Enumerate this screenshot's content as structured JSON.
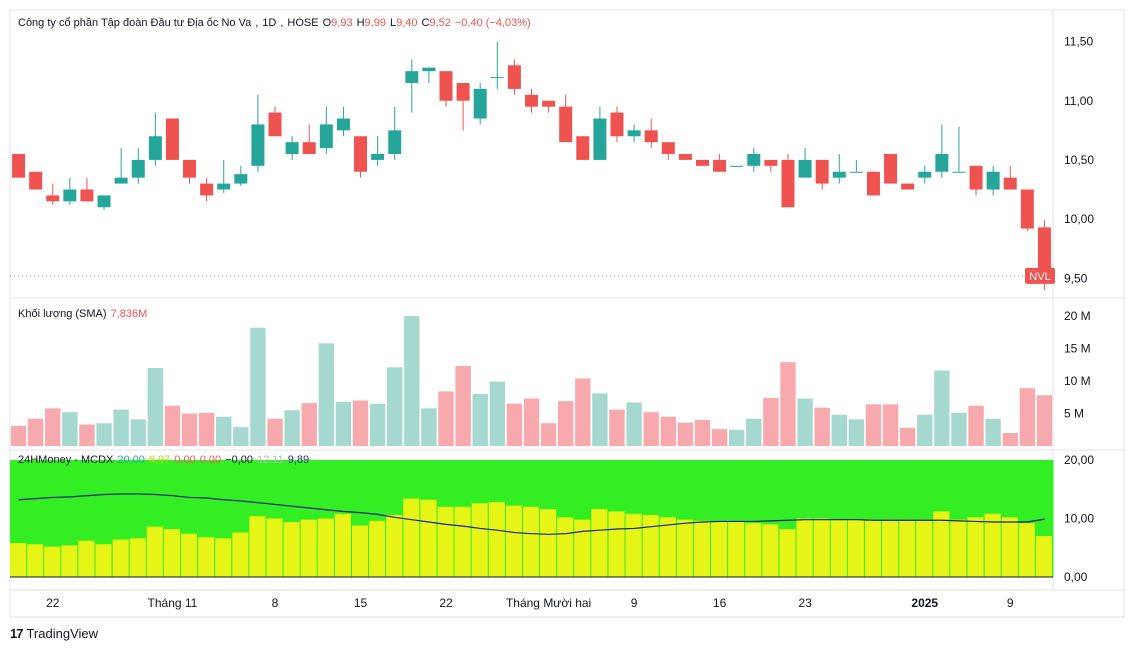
{
  "header": {
    "name": "Công ty cổ phần Tập đoàn Đầu tư Địa ốc No Va",
    "interval": "1D",
    "exchange": "HOSE",
    "o_label": "O",
    "o_val": "9,93",
    "h_label": "H",
    "h_val": "9,99",
    "l_label": "L",
    "l_val": "9,40",
    "c_label": "C",
    "c_val": "9,52",
    "change": "−0,40 (−4,03%)"
  },
  "volume_legend": {
    "title": "Khối lượng (SMA)",
    "value": "7,836M"
  },
  "mcdx_legend": {
    "title": "24HMoney - MCDX",
    "v1": "20,00",
    "v2": "6,97",
    "v3": "0,00",
    "v4": "0,00",
    "v5": "−0,00",
    "v6": "12,11",
    "v7": "9,89"
  },
  "price_badge": "NVL",
  "brand": "TradingView",
  "colors": {
    "up": "#26a69a",
    "down": "#ef5350",
    "vol_up": "#a5d8cf",
    "vol_down": "#f7a9ae",
    "green": "#33ee22",
    "yellow": "#e6f516",
    "line": "#1a237e"
  },
  "chart_data": [
    {
      "type": "candlestick",
      "price_axis": [
        "11,50",
        "11,00",
        "10,50",
        "10,00",
        "9,50"
      ],
      "ylim": [
        9.35,
        11.75
      ],
      "last_price": 9.52,
      "x_ticks": [
        {
          "label": "22",
          "index": 2
        },
        {
          "label": "Tháng 11",
          "index": 9
        },
        {
          "label": "8",
          "index": 15
        },
        {
          "label": "15",
          "index": 20
        },
        {
          "label": "22",
          "index": 25
        },
        {
          "label": "Tháng Mười hai",
          "index": 31
        },
        {
          "label": "9",
          "index": 36
        },
        {
          "label": "16",
          "index": 41
        },
        {
          "label": "23",
          "index": 46
        },
        {
          "label": "2025",
          "index": 53
        },
        {
          "label": "9",
          "index": 58
        }
      ],
      "ohlc": [
        [
          10.55,
          10.55,
          10.35,
          10.35
        ],
        [
          10.4,
          10.4,
          10.25,
          10.25
        ],
        [
          10.2,
          10.3,
          10.12,
          10.15
        ],
        [
          10.15,
          10.35,
          10.12,
          10.25
        ],
        [
          10.25,
          10.35,
          10.15,
          10.15
        ],
        [
          10.1,
          10.2,
          10.08,
          10.2
        ],
        [
          10.3,
          10.6,
          10.3,
          10.35
        ],
        [
          10.35,
          10.6,
          10.3,
          10.5
        ],
        [
          10.5,
          10.9,
          10.45,
          10.7
        ],
        [
          10.85,
          10.85,
          10.5,
          10.5
        ],
        [
          10.5,
          10.5,
          10.3,
          10.35
        ],
        [
          10.3,
          10.35,
          10.15,
          10.2
        ],
        [
          10.25,
          10.5,
          10.22,
          10.3
        ],
        [
          10.3,
          10.45,
          10.28,
          10.38
        ],
        [
          10.45,
          11.05,
          10.4,
          10.8
        ],
        [
          10.9,
          10.95,
          10.7,
          10.7
        ],
        [
          10.55,
          10.7,
          10.5,
          10.65
        ],
        [
          10.65,
          10.8,
          10.55,
          10.55
        ],
        [
          10.6,
          10.95,
          10.55,
          10.8
        ],
        [
          10.75,
          10.95,
          10.7,
          10.85
        ],
        [
          10.7,
          10.7,
          10.35,
          10.4
        ],
        [
          10.5,
          10.7,
          10.45,
          10.55
        ],
        [
          10.55,
          10.95,
          10.5,
          10.75
        ],
        [
          11.15,
          11.35,
          10.9,
          11.25
        ],
        [
          11.25,
          11.28,
          11.15,
          11.28
        ],
        [
          11.25,
          11.25,
          10.95,
          11.0
        ],
        [
          11.15,
          11.15,
          10.75,
          11.0
        ],
        [
          10.85,
          11.15,
          10.8,
          11.1
        ],
        [
          11.2,
          11.5,
          11.1,
          11.2
        ],
        [
          11.3,
          11.35,
          11.05,
          11.1
        ],
        [
          11.05,
          11.1,
          10.9,
          10.95
        ],
        [
          11.0,
          11.0,
          10.9,
          10.95
        ],
        [
          10.95,
          11.05,
          10.65,
          10.65
        ],
        [
          10.7,
          10.7,
          10.5,
          10.5
        ],
        [
          10.5,
          10.95,
          10.5,
          10.85
        ],
        [
          10.9,
          10.95,
          10.65,
          10.7
        ],
        [
          10.7,
          10.8,
          10.65,
          10.75
        ],
        [
          10.75,
          10.85,
          10.6,
          10.65
        ],
        [
          10.65,
          10.65,
          10.5,
          10.55
        ],
        [
          10.55,
          10.55,
          10.5,
          10.5
        ],
        [
          10.5,
          10.5,
          10.45,
          10.45
        ],
        [
          10.5,
          10.55,
          10.4,
          10.4
        ],
        [
          10.45,
          10.45,
          10.45,
          10.45
        ],
        [
          10.45,
          10.6,
          10.4,
          10.55
        ],
        [
          10.5,
          10.5,
          10.4,
          10.45
        ],
        [
          10.5,
          10.55,
          10.1,
          10.1
        ],
        [
          10.35,
          10.6,
          10.35,
          10.5
        ],
        [
          10.5,
          10.5,
          10.25,
          10.3
        ],
        [
          10.35,
          10.55,
          10.3,
          10.4
        ],
        [
          10.4,
          10.5,
          10.4,
          10.4
        ],
        [
          10.4,
          10.4,
          10.2,
          10.2
        ],
        [
          10.55,
          10.55,
          10.3,
          10.3
        ],
        [
          10.3,
          10.3,
          10.25,
          10.25
        ],
        [
          10.35,
          10.45,
          10.3,
          10.4
        ],
        [
          10.4,
          10.8,
          10.35,
          10.55
        ],
        [
          10.4,
          10.78,
          10.4,
          10.4
        ],
        [
          10.45,
          10.45,
          10.2,
          10.25
        ],
        [
          10.25,
          10.45,
          10.2,
          10.4
        ],
        [
          10.35,
          10.45,
          10.25,
          10.25
        ],
        [
          10.25,
          10.25,
          9.9,
          9.92
        ],
        [
          9.93,
          9.99,
          9.4,
          9.52
        ]
      ]
    },
    {
      "type": "bar",
      "title": "Khối lượng (SMA)",
      "axis": [
        "20 M",
        "15 M",
        "10 M",
        "5 M"
      ],
      "ylim": [
        0,
        20
      ],
      "values": [
        3.1,
        4.2,
        5.8,
        5.2,
        3.3,
        3.5,
        5.6,
        4.1,
        12.0,
        6.2,
        5.0,
        5.1,
        4.5,
        2.9,
        18.2,
        4.2,
        5.5,
        6.6,
        15.8,
        6.8,
        7.0,
        6.5,
        12.1,
        20.0,
        5.8,
        8.4,
        12.3,
        8.0,
        9.9,
        6.5,
        7.3,
        3.5,
        6.9,
        10.4,
        8.1,
        5.6,
        6.7,
        5.2,
        4.5,
        3.6,
        4.0,
        2.6,
        2.5,
        4.2,
        7.4,
        12.9,
        7.3,
        5.9,
        4.8,
        4.1,
        6.4,
        6.4,
        2.8,
        4.8,
        11.6,
        5.1,
        6.2,
        4.2,
        2.0,
        8.9,
        7.8
      ]
    },
    {
      "type": "area",
      "title": "24HMoney - MCDX",
      "axis": [
        "20,00",
        "10,00",
        "0,00"
      ],
      "ylim": [
        0,
        20
      ],
      "yellow": [
        5.8,
        5.6,
        5.2,
        5.4,
        6.2,
        5.6,
        6.4,
        6.6,
        8.6,
        8.2,
        7.4,
        6.8,
        6.6,
        7.6,
        10.4,
        10.0,
        9.4,
        9.8,
        10.0,
        10.8,
        8.8,
        9.6,
        10.6,
        13.4,
        13.2,
        12.0,
        12.0,
        12.6,
        12.8,
        12.2,
        12.0,
        11.6,
        10.2,
        9.8,
        11.6,
        11.2,
        10.8,
        10.6,
        10.2,
        9.8,
        9.6,
        9.4,
        9.4,
        9.2,
        9.0,
        8.2,
        10.0,
        10.0,
        9.8,
        9.8,
        9.8,
        9.8,
        9.8,
        9.8,
        11.2,
        9.8,
        10.2,
        10.8,
        10.2,
        9.2,
        7.0
      ],
      "green": [
        20,
        20,
        20,
        20,
        20,
        20,
        20,
        20,
        20,
        20,
        20,
        20,
        20,
        20,
        20,
        20,
        20,
        20,
        20,
        20,
        20,
        20,
        20,
        20,
        20,
        20,
        20,
        20,
        20,
        20,
        20,
        20,
        20,
        20,
        20,
        20,
        20,
        20,
        20,
        20,
        20,
        20,
        20,
        20,
        20,
        20,
        20,
        20,
        20,
        20,
        20,
        20,
        20,
        20,
        20,
        20,
        20,
        20,
        20,
        20,
        20
      ],
      "line": [
        13.2,
        13.4,
        13.6,
        13.7,
        13.9,
        14.1,
        14.2,
        14.2,
        14.1,
        13.9,
        13.6,
        13.5,
        13.2,
        13.0,
        12.7,
        12.4,
        12.1,
        11.8,
        11.5,
        11.2,
        11.0,
        10.7,
        10.2,
        9.8,
        9.4,
        9.0,
        8.7,
        8.3,
        8.0,
        7.6,
        7.4,
        7.3,
        7.4,
        7.8,
        8.0,
        8.2,
        8.3,
        8.6,
        8.9,
        9.2,
        9.4,
        9.5,
        9.5,
        9.5,
        9.6,
        9.7,
        9.8,
        9.8,
        9.8,
        9.8,
        9.7,
        9.7,
        9.7,
        9.7,
        9.7,
        9.6,
        9.5,
        9.4,
        9.4,
        9.4,
        9.89
      ],
      "zero_line": 0
    }
  ]
}
